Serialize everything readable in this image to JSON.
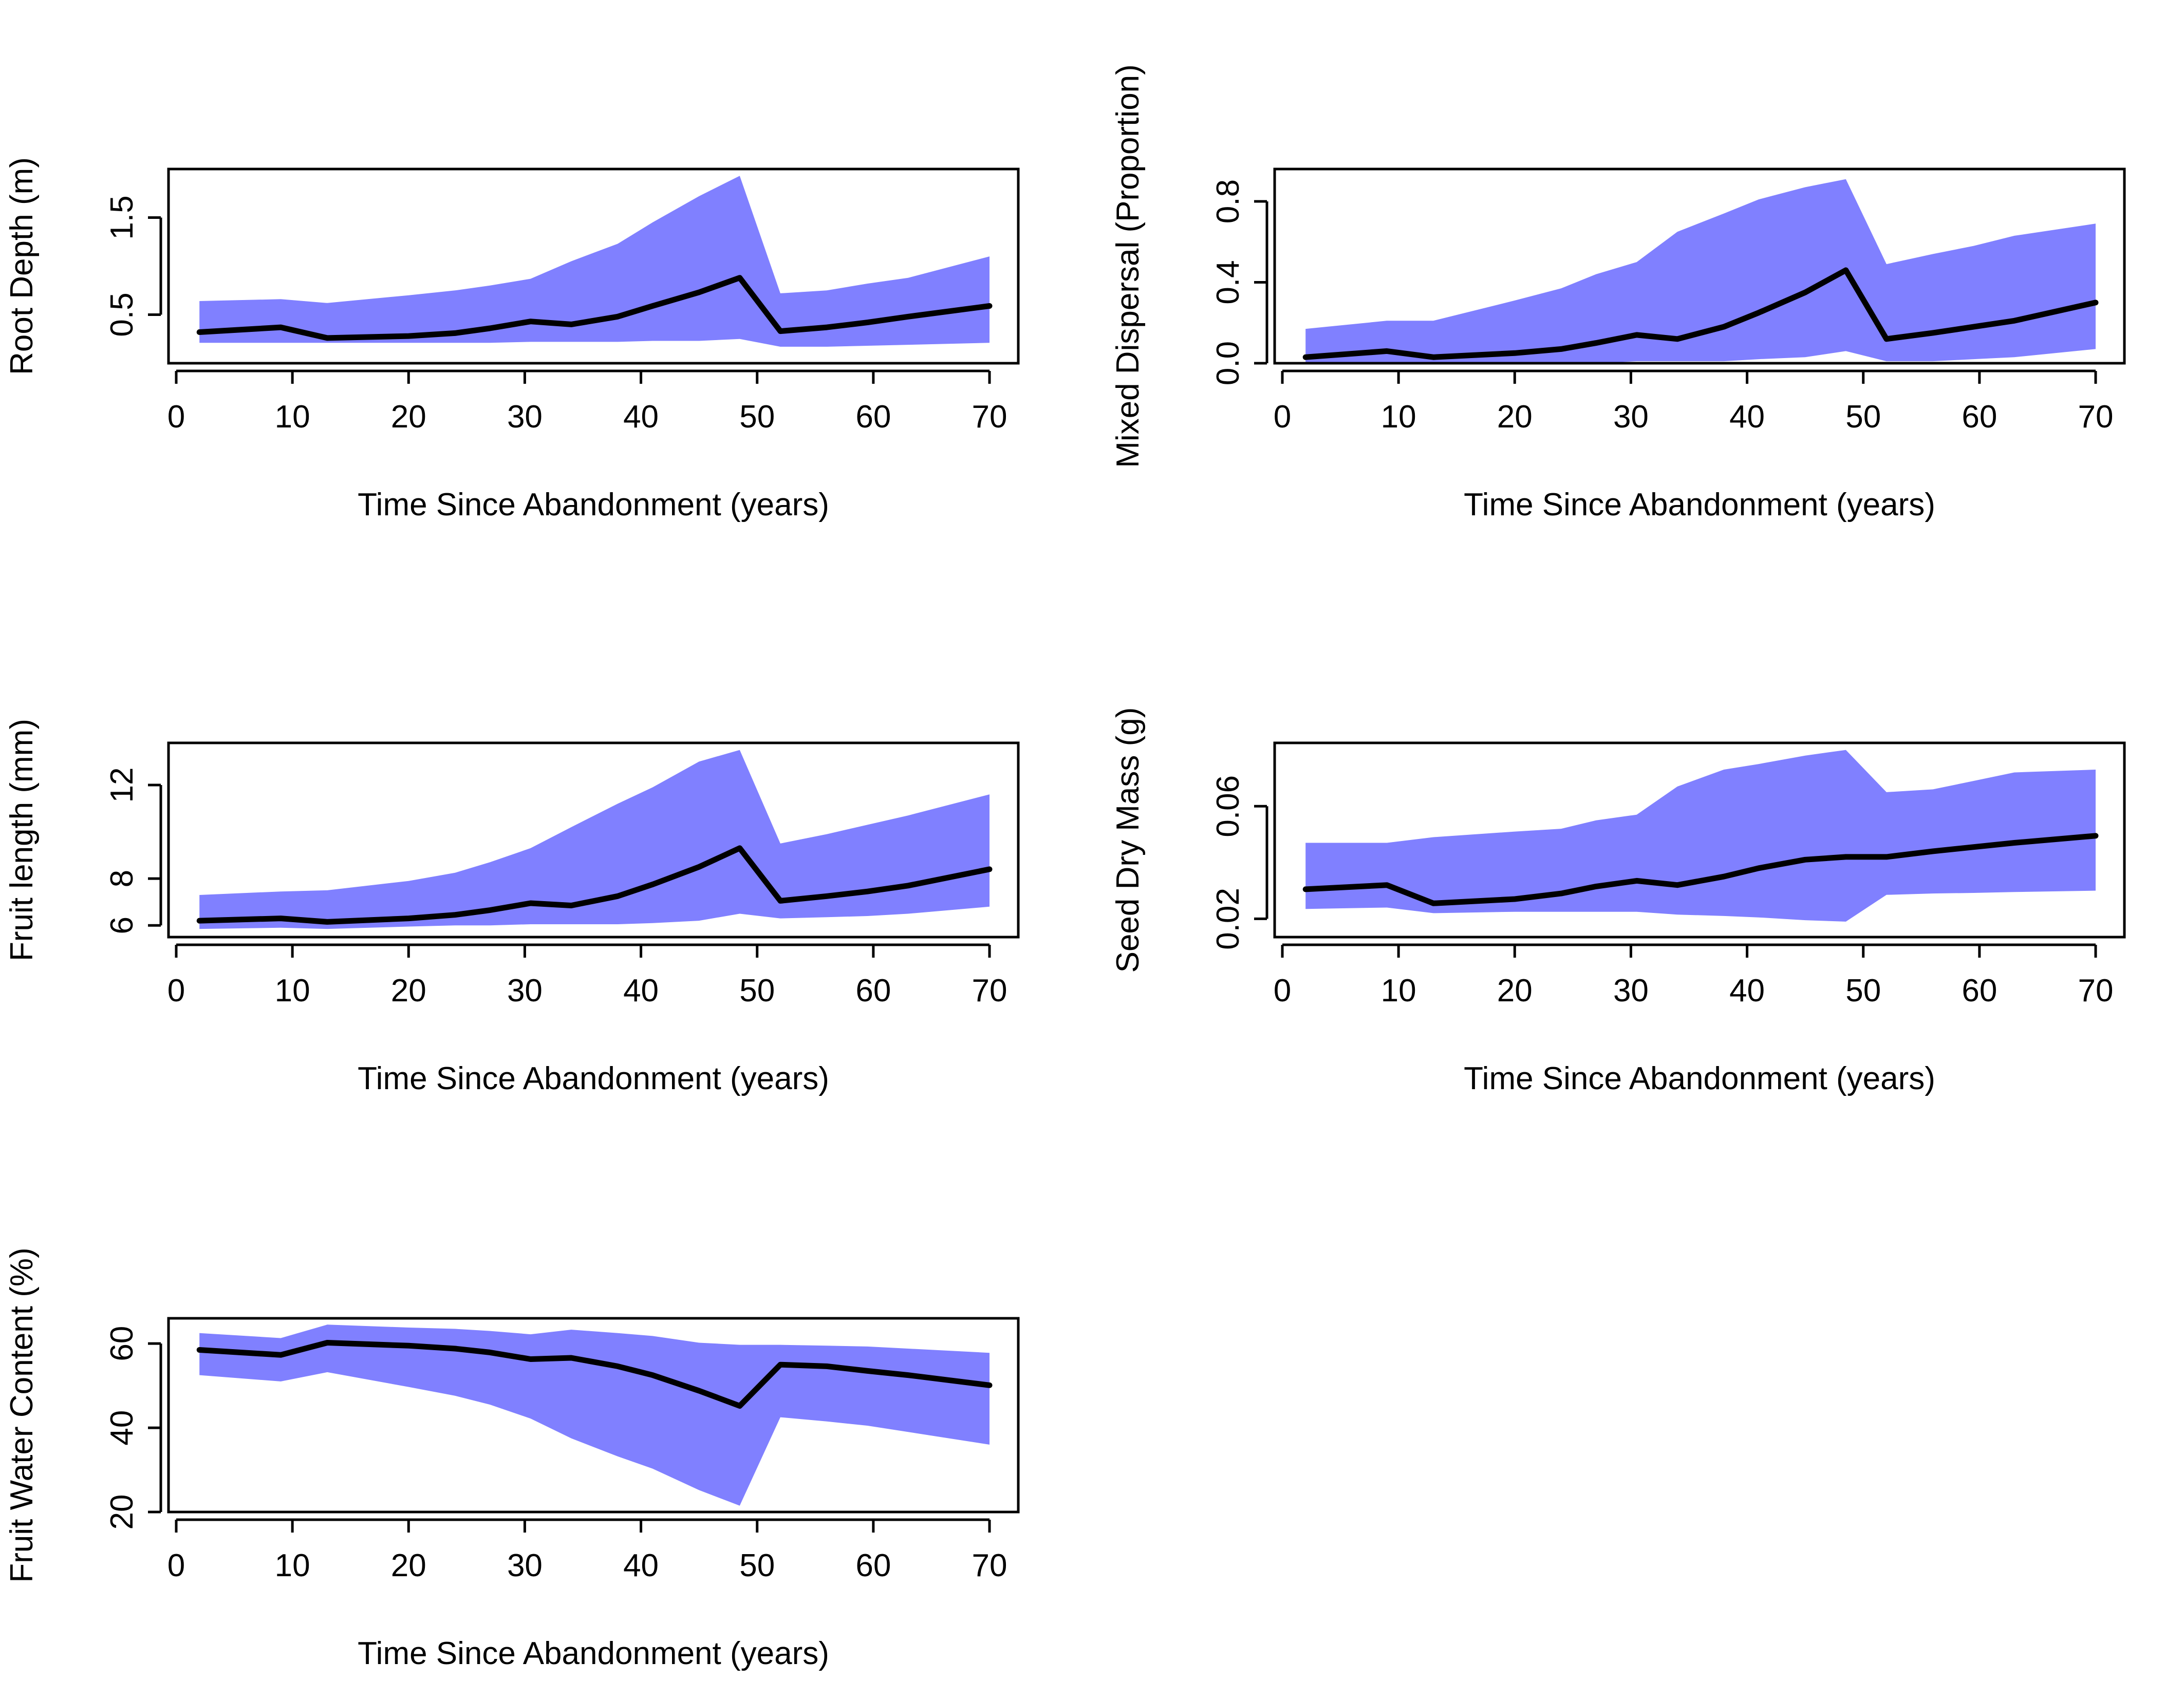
{
  "colors": {
    "band": "#8080ff",
    "line": "#000000",
    "axis": "#000000",
    "background": "#ffffff"
  },
  "chart_data": [
    {
      "type": "area",
      "xlabel": "Time Since Abandonment (years)",
      "ylabel": "Root Depth (m)",
      "xlim": [
        0,
        70
      ],
      "ylim": [
        0.0,
        2.0
      ],
      "xticks": [
        "0",
        "10",
        "20",
        "30",
        "40",
        "50",
        "60",
        "70"
      ],
      "yticks": [
        "0.5",
        "1.5"
      ],
      "x": [
        2,
        9,
        13,
        20,
        24,
        27,
        30.5,
        34,
        38,
        41,
        45,
        48.5,
        52,
        56,
        59.5,
        63,
        70
      ],
      "series": [
        {
          "role": "upper",
          "values": [
            0.64,
            0.66,
            0.62,
            0.7,
            0.75,
            0.8,
            0.87,
            1.05,
            1.23,
            1.45,
            1.72,
            1.93,
            0.72,
            0.75,
            0.82,
            0.88,
            1.1
          ]
        },
        {
          "role": "mean",
          "values": [
            0.32,
            0.37,
            0.26,
            0.28,
            0.31,
            0.36,
            0.43,
            0.4,
            0.48,
            0.59,
            0.73,
            0.88,
            0.33,
            0.37,
            0.42,
            0.48,
            0.59
          ]
        },
        {
          "role": "lower",
          "values": [
            0.21,
            0.21,
            0.21,
            0.21,
            0.21,
            0.21,
            0.22,
            0.22,
            0.22,
            0.23,
            0.23,
            0.25,
            0.17,
            0.17,
            0.18,
            0.19,
            0.21
          ]
        }
      ]
    },
    {
      "type": "area",
      "xlabel": "Time Since Abandonment (years)",
      "ylabel": "Mixed Dispersal (Proportion)",
      "xlim": [
        0,
        70
      ],
      "ylim": [
        0.0,
        0.96
      ],
      "xticks": [
        "0",
        "10",
        "20",
        "30",
        "40",
        "50",
        "60",
        "70"
      ],
      "yticks": [
        "0.0",
        "0.4",
        "0.8"
      ],
      "x": [
        2,
        9,
        13,
        20,
        24,
        27,
        30.5,
        34,
        38,
        41,
        45,
        48.5,
        52,
        56,
        59.5,
        63,
        70
      ],
      "series": [
        {
          "role": "upper",
          "values": [
            0.17,
            0.21,
            0.21,
            0.31,
            0.37,
            0.44,
            0.5,
            0.65,
            0.74,
            0.81,
            0.87,
            0.91,
            0.49,
            0.54,
            0.58,
            0.63,
            0.69
          ]
        },
        {
          "role": "mean",
          "values": [
            0.03,
            0.06,
            0.03,
            0.05,
            0.07,
            0.1,
            0.14,
            0.12,
            0.18,
            0.25,
            0.35,
            0.46,
            0.12,
            0.15,
            0.18,
            0.21,
            0.3
          ]
        },
        {
          "role": "lower",
          "values": [
            0.0,
            0.0,
            0.0,
            0.0,
            0.0,
            0.0,
            0.01,
            0.01,
            0.01,
            0.02,
            0.03,
            0.06,
            0.01,
            0.01,
            0.02,
            0.03,
            0.07
          ]
        }
      ]
    },
    {
      "type": "area",
      "xlabel": "Time Since Abandonment (years)",
      "ylabel": "Fruit length (mm)",
      "xlim": [
        0,
        70
      ],
      "ylim": [
        5.5,
        13.8
      ],
      "xticks": [
        "0",
        "10",
        "20",
        "30",
        "40",
        "50",
        "60",
        "70"
      ],
      "yticks": [
        "6",
        "8",
        "12"
      ],
      "x": [
        2,
        9,
        13,
        20,
        24,
        27,
        30.5,
        34,
        38,
        41,
        45,
        48.5,
        52,
        56,
        59.5,
        63,
        70
      ],
      "series": [
        {
          "role": "upper",
          "values": [
            7.3,
            7.45,
            7.5,
            7.9,
            8.25,
            8.7,
            9.3,
            10.2,
            11.2,
            11.9,
            13.0,
            13.5,
            9.5,
            9.9,
            10.3,
            10.7,
            11.6
          ]
        },
        {
          "role": "mean",
          "values": [
            6.2,
            6.3,
            6.15,
            6.3,
            6.45,
            6.65,
            6.95,
            6.85,
            7.25,
            7.75,
            8.5,
            9.3,
            7.05,
            7.25,
            7.45,
            7.7,
            8.4
          ]
        },
        {
          "role": "lower",
          "values": [
            5.85,
            5.9,
            5.85,
            5.95,
            6.0,
            6.0,
            6.05,
            6.05,
            6.05,
            6.1,
            6.2,
            6.5,
            6.3,
            6.35,
            6.4,
            6.5,
            6.8
          ]
        }
      ]
    },
    {
      "type": "area",
      "xlabel": "Time Since Abandonment (years)",
      "ylabel": "Seed Dry Mass (g)",
      "xlim": [
        0,
        70
      ],
      "ylim": [
        0.0135,
        0.0825
      ],
      "xticks": [
        "0",
        "10",
        "20",
        "30",
        "40",
        "50",
        "60",
        "70"
      ],
      "yticks": [
        "0.02",
        "0.06"
      ],
      "x": [
        2,
        9,
        13,
        20,
        24,
        27,
        30.5,
        34,
        38,
        41,
        45,
        48.5,
        52,
        56,
        59.5,
        63,
        70
      ],
      "series": [
        {
          "role": "upper",
          "values": [
            0.047,
            0.047,
            0.049,
            0.051,
            0.052,
            0.055,
            0.057,
            0.067,
            0.073,
            0.075,
            0.078,
            0.08,
            0.065,
            0.066,
            0.069,
            0.072,
            0.073
          ]
        },
        {
          "role": "mean",
          "values": [
            0.0305,
            0.032,
            0.0255,
            0.027,
            0.029,
            0.0315,
            0.0335,
            0.032,
            0.035,
            0.038,
            0.041,
            0.042,
            0.042,
            0.044,
            0.0455,
            0.047,
            0.0495
          ]
        },
        {
          "role": "lower",
          "values": [
            0.0235,
            0.024,
            0.022,
            0.0225,
            0.0225,
            0.0225,
            0.0225,
            0.0215,
            0.021,
            0.0205,
            0.0195,
            0.019,
            0.0285,
            0.029,
            0.0292,
            0.0295,
            0.03
          ]
        }
      ]
    },
    {
      "type": "area",
      "xlabel": "Time Since Abandonment (years)",
      "ylabel": "Fruit Water Content (%)",
      "xlim": [
        0,
        70
      ],
      "ylim": [
        20,
        66
      ],
      "xticks": [
        "0",
        "10",
        "20",
        "30",
        "40",
        "50",
        "60",
        "70"
      ],
      "yticks": [
        "20",
        "40",
        "60"
      ],
      "x": [
        2,
        9,
        13,
        20,
        24,
        27,
        30.5,
        34,
        38,
        41,
        45,
        48.5,
        52,
        56,
        59.5,
        63,
        70
      ],
      "series": [
        {
          "role": "upper",
          "values": [
            62.5,
            61.3,
            64.5,
            63.8,
            63.5,
            63.0,
            62.2,
            63.3,
            62.5,
            61.8,
            60.2,
            59.7,
            59.7,
            59.5,
            59.3,
            58.8,
            57.8
          ]
        },
        {
          "role": "mean",
          "values": [
            58.5,
            57.3,
            60.2,
            59.5,
            58.8,
            57.9,
            56.3,
            56.6,
            54.6,
            52.5,
            48.8,
            45.2,
            55.0,
            54.6,
            53.5,
            52.5,
            50.1
          ]
        },
        {
          "role": "lower",
          "values": [
            52.5,
            51.0,
            53.2,
            49.7,
            47.6,
            45.5,
            42.2,
            37.5,
            33.2,
            30.3,
            25.2,
            21.5,
            42.5,
            41.5,
            40.5,
            39.0,
            36.0
          ]
        }
      ]
    }
  ]
}
